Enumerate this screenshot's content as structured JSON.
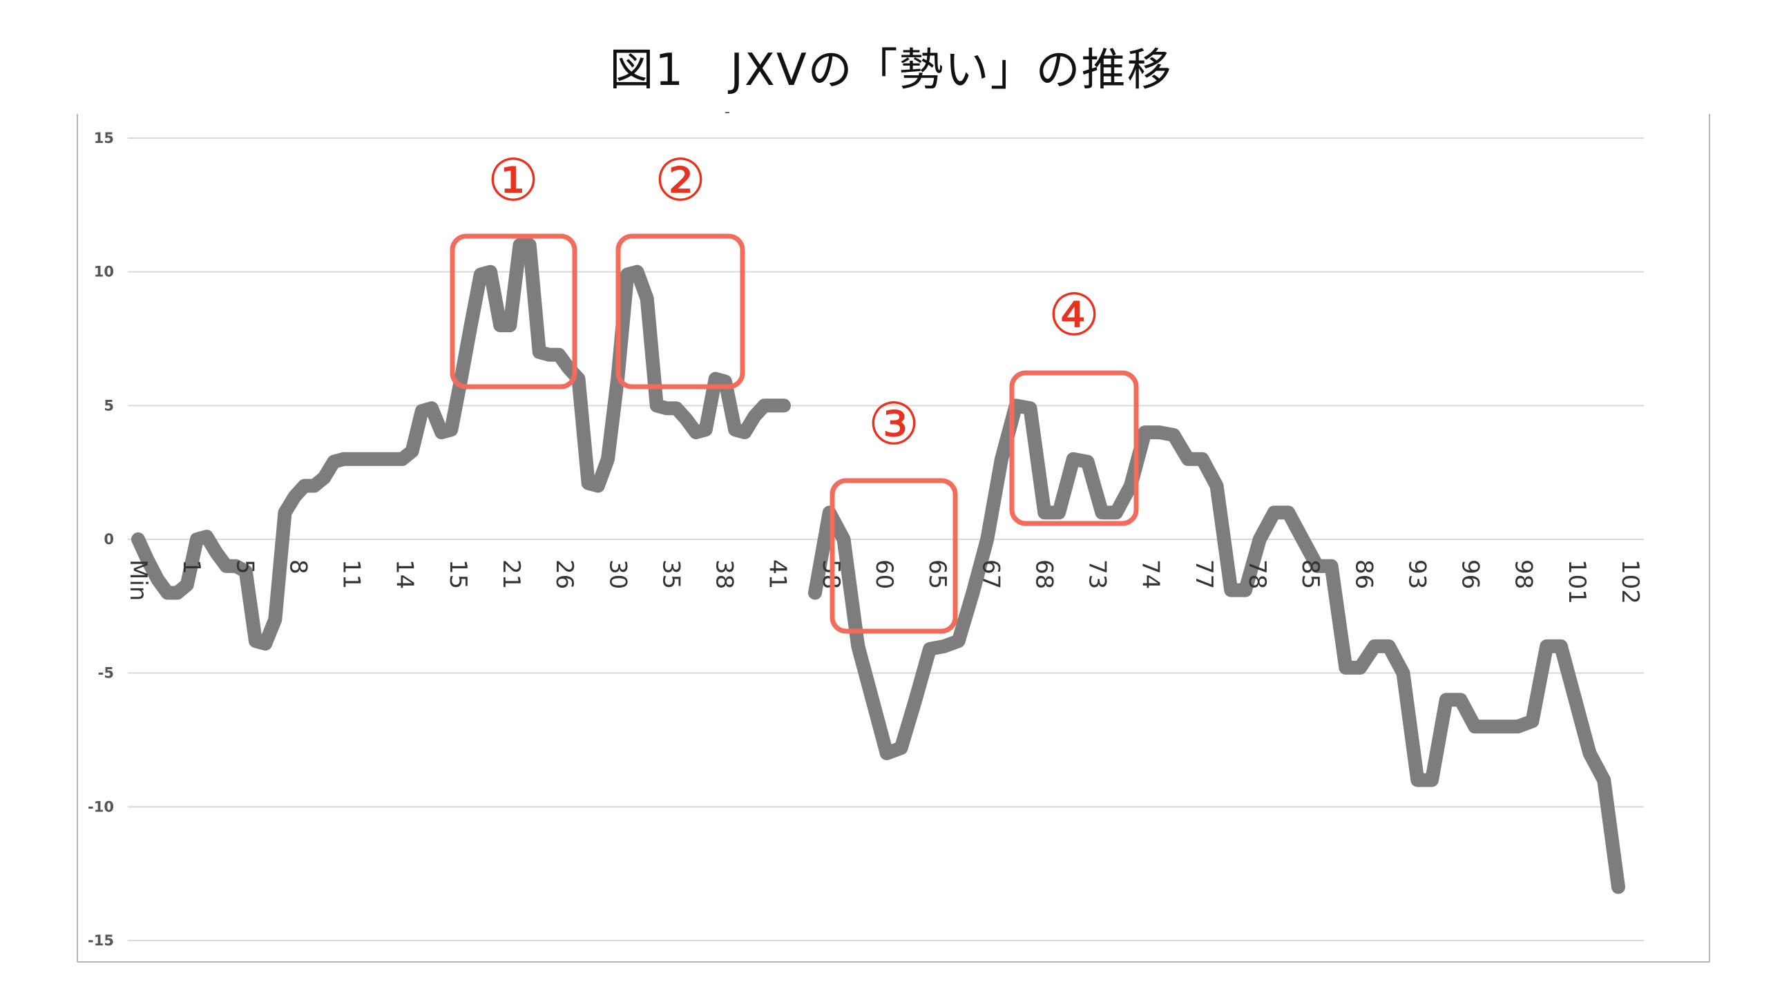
{
  "title": "図1　JXVの「勢い」の推移",
  "colors": {
    "line": "#7d7d7d",
    "grid": "#d9d9d9",
    "axis_text": "#555555",
    "tick_text": "#333333",
    "highlight": "#f26b5b",
    "callout_text": "#e8321f"
  },
  "chart_data": {
    "type": "line",
    "title": "図1　JXVの「勢い」の推移",
    "xlabel": "",
    "ylabel": "",
    "ylim": [
      -15,
      15
    ],
    "y_ticks": [
      15,
      10,
      5,
      0,
      -5,
      -10,
      -15
    ],
    "grid": true,
    "x_ticks": [
      "Min",
      "1",
      "5",
      "8",
      "11",
      "14",
      "15",
      "21",
      "26",
      "30",
      "35",
      "38",
      "41",
      "58",
      "60",
      "65",
      "67",
      "68",
      "73",
      "74",
      "77",
      "78",
      "85",
      "86",
      "93",
      "96",
      "98",
      "101",
      "102"
    ],
    "series": [
      {
        "segments": [
          [
            0,
            -0.8,
            -1.5,
            -2,
            -2,
            -1.7,
            0,
            0.1,
            -0.5,
            -1,
            -1,
            -1.2,
            -3.8,
            -3.9,
            -3,
            1,
            1.6,
            2,
            2,
            2.3,
            2.9,
            3,
            3,
            3,
            3,
            3,
            3,
            3,
            3.3,
            4.8,
            4.9,
            4,
            4.1,
            6,
            8,
            9.9,
            10,
            8,
            8,
            11,
            11,
            7,
            6.9,
            6.9,
            6.4,
            6,
            2.1,
            2,
            3,
            6,
            9.9,
            10,
            9,
            5,
            4.9,
            4.9,
            4.5,
            4,
            4.1,
            6,
            5.9,
            4.1,
            4,
            4.6,
            5,
            5,
            5
          ],
          [
            -2,
            1,
            0,
            -4,
            -6,
            -8,
            -7.8,
            -6,
            -4.1,
            -4,
            -3.8,
            -2,
            0,
            3,
            5,
            4.9,
            1,
            1,
            3,
            2.9,
            1,
            1,
            2,
            4,
            4,
            3.9,
            3,
            3,
            2,
            -1.9,
            -1.9,
            0,
            1,
            1,
            0,
            -1,
            -1,
            -4.8,
            -4.8,
            -4,
            -4,
            -5,
            -9,
            -9,
            -6,
            -6,
            -7,
            -7,
            -7,
            -7,
            -6.8,
            -4,
            -4,
            -6,
            -8,
            -9,
            -13
          ]
        ]
      }
    ],
    "callouts": [
      "①",
      "②",
      "③",
      "④"
    ]
  }
}
